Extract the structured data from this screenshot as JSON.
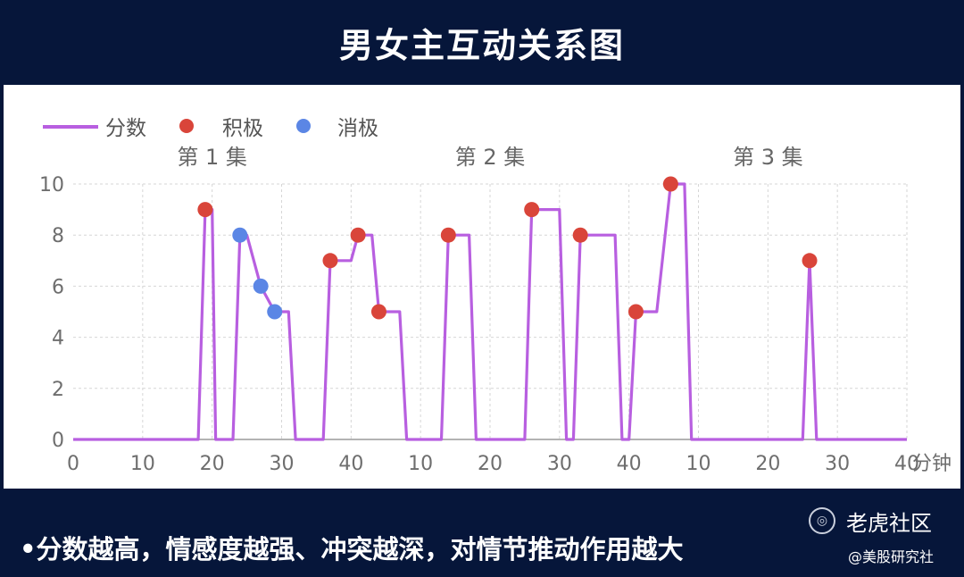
{
  "title": "男女主互动关系图",
  "footer": "•分数越高，情感度越强、冲突越深，对情节推动作用越大",
  "watermark": {
    "brand": "老虎社区",
    "source": "@美股研究社",
    "icon": "tiger-logo-icon"
  },
  "chart_data": {
    "type": "line",
    "legend": {
      "line": "分数",
      "positive": "积极",
      "negative": "消极",
      "placement": "top-left"
    },
    "colors": {
      "line": "#b85fe0",
      "positive": "#d9453a",
      "negative": "#5b86e5",
      "grid": "#d6d6d6",
      "tick": "#6e6e6e"
    },
    "xunit": "分钟",
    "ylim": [
      0,
      10
    ],
    "yticks": [
      0,
      2,
      4,
      6,
      8,
      10
    ],
    "grid": true,
    "episodes": [
      {
        "label": "第 1 集",
        "xticks": [
          "0",
          "10",
          "20",
          "30"
        ]
      },
      {
        "label": "第 2 集",
        "xticks": [
          "40",
          "10",
          "20",
          "30"
        ]
      },
      {
        "label": "第 3 集",
        "xticks": [
          "40",
          "10",
          "20",
          "30",
          "40"
        ]
      }
    ],
    "x_range_total": [
      0,
      120
    ],
    "series": [
      {
        "name": "分数",
        "points": [
          [
            0,
            0
          ],
          [
            18,
            0
          ],
          [
            19,
            9
          ],
          [
            20,
            9
          ],
          [
            20.5,
            0
          ],
          [
            23,
            0
          ],
          [
            24,
            8
          ],
          [
            25,
            8
          ],
          [
            27,
            6
          ],
          [
            29,
            5
          ],
          [
            31,
            5
          ],
          [
            32,
            0
          ],
          [
            36,
            0
          ],
          [
            37,
            7
          ],
          [
            40,
            7
          ],
          [
            41,
            8
          ],
          [
            43,
            8
          ],
          [
            44,
            5
          ],
          [
            47,
            5
          ],
          [
            48,
            0
          ],
          [
            53,
            0
          ],
          [
            54,
            8
          ],
          [
            57,
            8
          ],
          [
            58,
            0
          ],
          [
            65,
            0
          ],
          [
            66,
            9
          ],
          [
            70,
            9
          ],
          [
            71,
            0
          ],
          [
            72,
            0
          ],
          [
            73,
            8
          ],
          [
            78,
            8
          ],
          [
            79,
            0
          ],
          [
            80,
            0
          ],
          [
            81,
            5
          ],
          [
            84,
            5
          ],
          [
            86,
            10
          ],
          [
            88,
            10
          ],
          [
            89,
            0
          ],
          [
            105,
            0
          ],
          [
            106,
            7
          ],
          [
            107,
            0
          ],
          [
            120,
            0
          ]
        ]
      }
    ],
    "markers": [
      {
        "x": 19,
        "y": 9,
        "type": "positive"
      },
      {
        "x": 24,
        "y": 8,
        "type": "negative"
      },
      {
        "x": 27,
        "y": 6,
        "type": "negative"
      },
      {
        "x": 29,
        "y": 5,
        "type": "negative"
      },
      {
        "x": 37,
        "y": 7,
        "type": "positive"
      },
      {
        "x": 41,
        "y": 8,
        "type": "positive"
      },
      {
        "x": 44,
        "y": 5,
        "type": "positive"
      },
      {
        "x": 54,
        "y": 8,
        "type": "positive"
      },
      {
        "x": 66,
        "y": 9,
        "type": "positive"
      },
      {
        "x": 73,
        "y": 8,
        "type": "positive"
      },
      {
        "x": 81,
        "y": 5,
        "type": "positive"
      },
      {
        "x": 86,
        "y": 10,
        "type": "positive"
      },
      {
        "x": 106,
        "y": 7,
        "type": "positive"
      }
    ]
  }
}
